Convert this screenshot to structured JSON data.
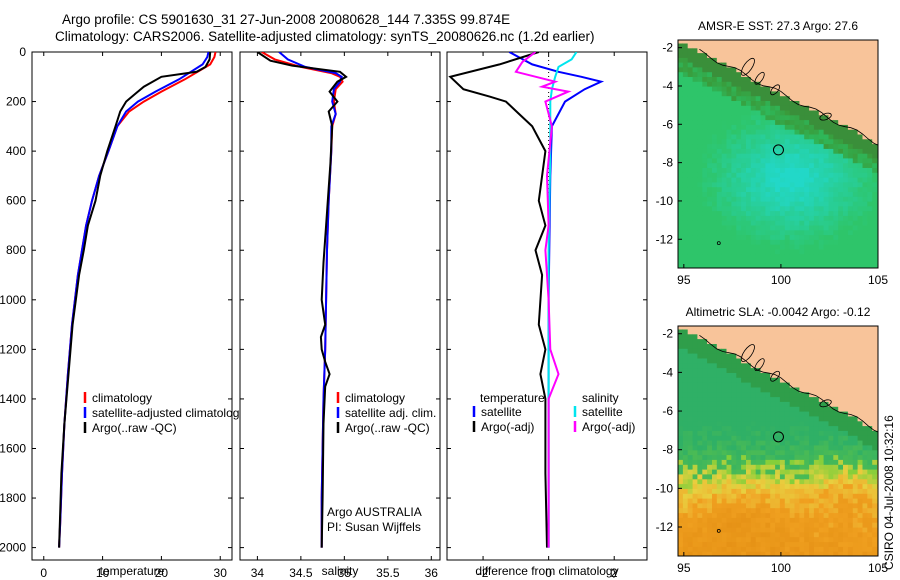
{
  "header": {
    "line1": "Argo profile: CS 5901630_31 27-Jun-2008 20080628_144 7.335S 99.874E",
    "line2": "Climatology: CARS2006. Satellite-adjusted climatology: synTS_20080626.nc (1.2d earlier)"
  },
  "side_label": "CSIRO 04-Jul-2008 10:32:16",
  "colors": {
    "climatology": "#ff0000",
    "satellite": "#0000ff",
    "argo": "#000000",
    "sal_satellite": "#00e5ee",
    "sal_argo": "#ff00ff",
    "land": "#f8c49a"
  },
  "chart_data": [
    {
      "id": "temperature",
      "type": "line",
      "xlabel": "temperature",
      "ylabel": "",
      "xlim": [
        -2,
        32
      ],
      "ylim": [
        2050,
        0
      ],
      "xticks": [
        0,
        10,
        20,
        30
      ],
      "yticks": [
        0,
        200,
        400,
        600,
        800,
        1000,
        1200,
        1400,
        1600,
        1800,
        2000
      ],
      "legend": [
        "climatology",
        "satellite-adjusted climatology",
        "Argo(..raw -QC)"
      ],
      "series": [
        {
          "name": "climatology",
          "color": "#ff0000",
          "x": [
            29.2,
            29.0,
            28.3,
            24.0,
            20.0,
            17.0,
            14.5,
            12.5,
            11.0,
            9.4,
            8.2,
            7.2,
            6.5,
            5.8,
            4.8,
            4.1,
            3.5,
            3.1,
            2.8,
            2.6
          ],
          "y": [
            0,
            20,
            50,
            110,
            160,
            200,
            240,
            300,
            400,
            500,
            600,
            700,
            800,
            900,
            1100,
            1300,
            1500,
            1700,
            1900,
            2000
          ]
        },
        {
          "name": "satellite-adjusted climatology",
          "color": "#0000ff",
          "x": [
            28.0,
            27.8,
            27.0,
            23.0,
            19.0,
            16.0,
            14.0,
            12.5,
            11.0,
            9.4,
            8.2,
            7.2,
            6.5,
            5.8,
            4.8,
            4.1,
            3.5,
            3.1,
            2.8,
            2.6
          ],
          "y": [
            0,
            20,
            50,
            110,
            160,
            200,
            240,
            300,
            400,
            500,
            600,
            700,
            800,
            900,
            1100,
            1300,
            1500,
            1700,
            1900,
            2000
          ]
        },
        {
          "name": "Argo(..raw -QC)",
          "color": "#000000",
          "x": [
            28.3,
            28.2,
            27.5,
            26.0,
            20.0,
            17.0,
            15.5,
            14.0,
            13.0,
            12.2,
            10.8,
            9.6,
            8.8,
            7.5,
            6.8,
            6.0,
            4.9,
            4.2,
            3.5,
            3.0,
            2.6
          ],
          "y": [
            0,
            30,
            60,
            80,
            100,
            140,
            170,
            200,
            240,
            300,
            400,
            500,
            600,
            700,
            800,
            900,
            1100,
            1300,
            1500,
            1700,
            2000
          ]
        }
      ]
    },
    {
      "id": "salinity",
      "type": "line",
      "xlabel": "salinity",
      "ylabel": "",
      "xlim": [
        33.8,
        36.1
      ],
      "ylim": [
        2050,
        0
      ],
      "xticks": [
        34,
        34.5,
        35,
        35.5,
        36
      ],
      "legend": [
        "climatology",
        "satellite adj. clim.",
        "Argo(..raw -QC)"
      ],
      "annotation": [
        "Argo AUSTRALIA",
        "PI: Susan Wijffels"
      ],
      "series": [
        {
          "name": "climatology",
          "color": "#ff0000",
          "x": [
            34.05,
            34.2,
            34.5,
            34.85,
            34.95,
            34.98,
            34.9,
            34.88,
            34.9,
            34.86,
            34.85,
            34.82,
            34.8,
            34.79,
            34.78,
            34.76,
            34.75,
            34.74,
            34.74
          ],
          "y": [
            0,
            30,
            60,
            85,
            100,
            120,
            150,
            200,
            250,
            300,
            400,
            600,
            800,
            1000,
            1200,
            1400,
            1600,
            1800,
            2000
          ]
        },
        {
          "name": "satellite adj. clim.",
          "color": "#0000ff",
          "x": [
            34.25,
            34.35,
            34.55,
            34.9,
            34.97,
            34.95,
            34.88,
            34.86,
            34.9,
            34.85,
            34.85,
            34.82,
            34.8,
            34.79,
            34.78,
            34.76,
            34.75,
            34.74,
            34.74
          ],
          "y": [
            0,
            30,
            60,
            85,
            100,
            120,
            150,
            200,
            250,
            300,
            400,
            600,
            800,
            1000,
            1200,
            1400,
            1600,
            1800,
            2000
          ]
        },
        {
          "name": "Argo(..raw -QC)",
          "color": "#000000",
          "x": [
            34.0,
            34.15,
            34.4,
            34.95,
            35.02,
            34.92,
            34.83,
            34.92,
            34.82,
            34.86,
            34.84,
            34.79,
            34.76,
            34.74,
            34.78,
            34.73,
            34.74,
            34.78,
            34.83,
            34.78,
            34.76,
            34.75,
            34.74
          ],
          "y": [
            0,
            35,
            55,
            80,
            100,
            120,
            160,
            200,
            240,
            300,
            450,
            700,
            850,
            1000,
            1100,
            1150,
            1200,
            1250,
            1300,
            1350,
            1500,
            1800,
            2000
          ]
        }
      ]
    },
    {
      "id": "difference",
      "type": "line",
      "xlabel": "difference from climatology",
      "ylabel": "",
      "xlim": [
        -3.1,
        3.0
      ],
      "ylim": [
        2050,
        0
      ],
      "xticks": [
        -2,
        0,
        2
      ],
      "legend_headers": [
        "temperature",
        "salinity"
      ],
      "legend": [
        "satellite",
        "Argo(-adj)",
        "satellite",
        "Argo(-adj)"
      ],
      "series": [
        {
          "name": "satellite",
          "color": "#0000ff",
          "x": [
            -1.2,
            -0.5,
            0.3,
            1.0,
            1.6,
            1.1,
            0.5,
            0.1,
            0.05,
            0.0,
            0.0
          ],
          "y": [
            0,
            50,
            80,
            100,
            120,
            150,
            200,
            300,
            500,
            1000,
            2000
          ]
        },
        {
          "name": "Argo(-adj)",
          "color": "#000000",
          "x": [
            -0.3,
            -1.5,
            -3.0,
            -2.6,
            -1.8,
            -1.3,
            -0.9,
            -0.5,
            -0.1,
            -0.3,
            -0.1,
            -0.4,
            -0.2,
            -0.3,
            -0.1,
            -0.25,
            -0.1,
            -0.1,
            -0.05
          ],
          "y": [
            0,
            50,
            100,
            150,
            180,
            200,
            250,
            300,
            400,
            600,
            700,
            800,
            900,
            1100,
            1200,
            1300,
            1400,
            1700,
            2000
          ]
        },
        {
          "name": "satellite",
          "color": "#00e5ee",
          "x": [
            0.85,
            0.7,
            0.3,
            0.2,
            0.1,
            0.05,
            0.05,
            0.0,
            0.0
          ],
          "y": [
            0,
            30,
            60,
            100,
            150,
            200,
            400,
            800,
            2000
          ]
        },
        {
          "name": "Argo(-adj)",
          "color": "#ff00ff",
          "x": [
            -0.4,
            -0.8,
            -1.0,
            0.2,
            -0.2,
            0.6,
            -0.1,
            0.1,
            -0.05,
            0.0,
            -0.1,
            0.0,
            0.05,
            0.3,
            0.0,
            0.0
          ],
          "y": [
            0,
            40,
            80,
            120,
            140,
            160,
            200,
            300,
            500,
            700,
            800,
            1000,
            1200,
            1300,
            1400,
            2000
          ]
        }
      ]
    },
    {
      "id": "sst_map",
      "type": "heatmap",
      "title": "AMSR-E SST: 27.3 Argo: 27.6",
      "xlim": [
        94.7,
        105
      ],
      "ylim": [
        -13.5,
        -1.6
      ],
      "xticks": [
        95,
        100,
        105
      ],
      "yticks": [
        -2,
        -4,
        -6,
        -8,
        -10,
        -12
      ],
      "marker": {
        "lon": 99.874,
        "lat": -7.335
      }
    },
    {
      "id": "sla_map",
      "type": "heatmap",
      "title": "Altimetric SLA: -0.0042 Argo: -0.12",
      "xlim": [
        94.7,
        105
      ],
      "ylim": [
        -13.5,
        -1.6
      ],
      "xticks": [
        95,
        100,
        105
      ],
      "yticks": [
        -2,
        -4,
        -6,
        -8,
        -10,
        -12
      ],
      "marker": {
        "lon": 99.874,
        "lat": -7.335
      }
    }
  ]
}
